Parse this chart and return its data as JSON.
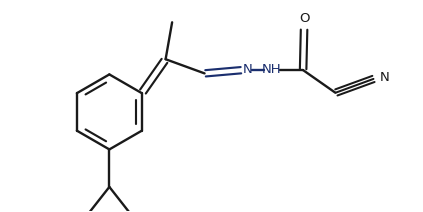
{
  "bg_color": "#ffffff",
  "line_color": "#1a1a1a",
  "dark_blue": "#1a2e6e",
  "lw": 1.7,
  "figsize": [
    4.23,
    2.12
  ],
  "dpi": 100,
  "xlim": [
    0,
    4.23
  ],
  "ylim": [
    0,
    2.12
  ]
}
